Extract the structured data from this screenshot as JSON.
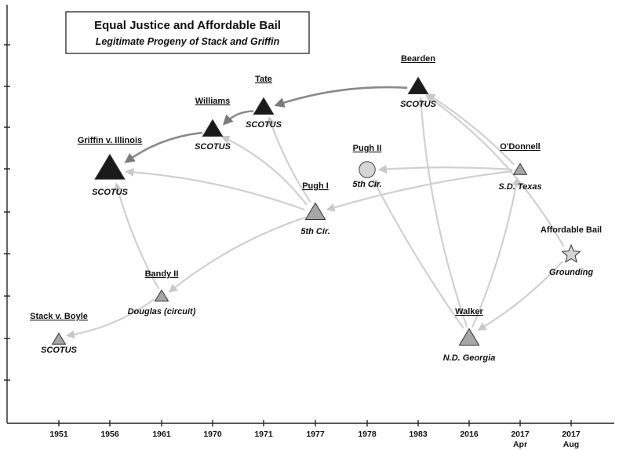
{
  "title": {
    "main": "Equal Justice and Affordable Bail",
    "subtitle": "Legitimate Progeny of Stack and Griffin"
  },
  "x_axis": {
    "ticks": [
      {
        "label": "1951",
        "sub": ""
      },
      {
        "label": "1956",
        "sub": ""
      },
      {
        "label": "1961",
        "sub": ""
      },
      {
        "label": "1970",
        "sub": ""
      },
      {
        "label": "1971",
        "sub": ""
      },
      {
        "label": "1977",
        "sub": ""
      },
      {
        "label": "1978",
        "sub": ""
      },
      {
        "label": "1983",
        "sub": ""
      },
      {
        "label": "2016",
        "sub": ""
      },
      {
        "label": "2017",
        "sub": "Apr"
      },
      {
        "label": "2017",
        "sub": "Aug"
      }
    ]
  },
  "nodes": [
    {
      "id": "stack",
      "name": "Stack v. Boyle",
      "court": "SCOTUS",
      "shape": "triangle",
      "size": "small",
      "fill": "#a6a6a6",
      "underline": true
    },
    {
      "id": "griffin",
      "name": "Griffin v. Illinois",
      "court": "SCOTUS",
      "shape": "triangle",
      "size": "large",
      "fill": "#1a1a1a",
      "underline": true
    },
    {
      "id": "bandy",
      "name": "Bandy II",
      "court": "Douglas (circuit)",
      "shape": "triangle",
      "size": "small",
      "fill": "#a6a6a6",
      "underline": true
    },
    {
      "id": "williams",
      "name": "Williams",
      "court": "SCOTUS",
      "shape": "triangle",
      "size": "medium",
      "fill": "#1a1a1a",
      "underline": true
    },
    {
      "id": "tate",
      "name": "Tate",
      "court": "SCOTUS",
      "shape": "triangle",
      "size": "medium",
      "fill": "#1a1a1a",
      "underline": true
    },
    {
      "id": "pugh1",
      "name": "Pugh I",
      "court": "5th Cir.",
      "shape": "triangle",
      "size": "medium",
      "fill": "#a6a6a6",
      "underline": true
    },
    {
      "id": "pugh2",
      "name": "Pugh II",
      "court": "5th Cir.",
      "shape": "circle",
      "size": "medium",
      "fill": "#d6d6d6",
      "underline": true
    },
    {
      "id": "bearden",
      "name": "Bearden",
      "court": "SCOTUS",
      "shape": "triangle",
      "size": "medium",
      "fill": "#1a1a1a",
      "underline": true
    },
    {
      "id": "walker",
      "name": "Walker",
      "court": "N.D. Georgia",
      "shape": "triangle",
      "size": "medium",
      "fill": "#a6a6a6",
      "underline": true
    },
    {
      "id": "odonnell",
      "name": "O'Donnell",
      "court": "S.D. Texas",
      "shape": "triangle",
      "size": "small",
      "fill": "#a6a6a6",
      "underline": true
    },
    {
      "id": "affordable",
      "name": "Affordable Bail",
      "court": "Grounding",
      "shape": "star",
      "size": "medium",
      "fill": "#d6d6d6",
      "underline": false
    }
  ],
  "edges": [
    {
      "from": "bandy",
      "to": "stack",
      "style": "light"
    },
    {
      "from": "bandy",
      "to": "griffin",
      "style": "light"
    },
    {
      "from": "pugh1",
      "to": "bandy",
      "style": "light"
    },
    {
      "from": "pugh1",
      "to": "griffin",
      "style": "light"
    },
    {
      "from": "pugh1",
      "to": "williams",
      "style": "light"
    },
    {
      "from": "pugh1",
      "to": "tate",
      "style": "light"
    },
    {
      "from": "williams",
      "to": "griffin",
      "style": "dark"
    },
    {
      "from": "tate",
      "to": "williams",
      "style": "dark"
    },
    {
      "from": "bearden",
      "to": "tate",
      "style": "dark"
    },
    {
      "from": "odonnell",
      "to": "pugh2",
      "style": "light"
    },
    {
      "from": "odonnell",
      "to": "pugh1",
      "style": "light"
    },
    {
      "from": "odonnell",
      "to": "bearden",
      "style": "light"
    },
    {
      "from": "walker",
      "to": "pugh2",
      "style": "light"
    },
    {
      "from": "walker",
      "to": "bearden",
      "style": "light"
    },
    {
      "from": "walker",
      "to": "odonnell",
      "style": "light"
    },
    {
      "from": "affordable",
      "to": "walker",
      "style": "light"
    },
    {
      "from": "affordable",
      "to": "bearden",
      "style": "light"
    }
  ]
}
